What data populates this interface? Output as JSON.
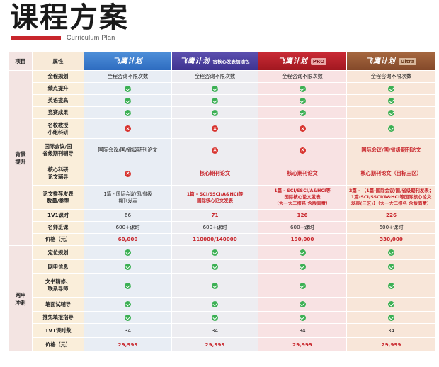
{
  "header": {
    "title": "课程方案",
    "subtitle": "Curriculum Plan",
    "accent_color": "#c8262c"
  },
  "table": {
    "col_group": "项目",
    "col_attr": "属性",
    "plans": [
      {
        "name": "飞鹰计划",
        "tag": "",
        "color": "#3a7bcc"
      },
      {
        "name": "飞鹰计划",
        "tag": "含核心发表加油包",
        "color": "#4a3f9e"
      },
      {
        "name": "飞鹰计划",
        "tag": "PRO",
        "color": "#b51f29"
      },
      {
        "name": "飞鹰计划",
        "tag": "Ultra",
        "color": "#955634"
      }
    ],
    "groups": [
      {
        "label": "背景\n提升",
        "rows": [
          {
            "attr": "全程规划",
            "values": [
              "全程咨询不限次数",
              "全程咨询不限次数",
              "全程咨询不限次数",
              "全程咨询不限次数"
            ]
          },
          {
            "attr": "绩点提升",
            "values": [
              "check",
              "check",
              "check",
              "check"
            ]
          },
          {
            "attr": "英语拔高",
            "values": [
              "check",
              "check",
              "check",
              "check"
            ]
          },
          {
            "attr": "竞赛成果",
            "values": [
              "check",
              "check",
              "check",
              "check"
            ]
          },
          {
            "attr": "名校教授\n小组科研",
            "values": [
              "cross",
              "cross",
              "cross",
              "check"
            ]
          },
          {
            "attr": "国际会议/国\n省级期刊辅导",
            "values": [
              "国际会议/国/省级期刊论文",
              "cross",
              "cross",
              "国际会议/国/省级期刊论文"
            ]
          },
          {
            "attr": "核心科研\n论文辅导",
            "values": [
              "cross",
              "核心期刊论文",
              "核心期刊论文",
              "核心期刊论文（目标三区）"
            ]
          },
          {
            "attr": "论文推荐发表\n数量/类型",
            "values": [
              "1篇 - 国际会议/国/省级\n期刊发表",
              "1篇 - SCI/SSCI/A&HCI等\n国际核心论文发表",
              "1篇 - SCI/SSCI/A&HCI等\n国际核心论文发表\n（大一大二报名 含版面费）",
              "2篇 - 【1篇-国际会议/国/省级期刊发表；\n1篇-SCI/SSCI/A&HCI等国际核心论文\n发表(三区)】（大一大二报名 含版面费）"
            ]
          },
          {
            "attr": "1V1课时",
            "values": [
              "66",
              "71",
              "126",
              "226"
            ]
          },
          {
            "attr": "名师班课",
            "values": [
              "600+课时",
              "600+课时",
              "600+课时",
              "600+课时"
            ]
          },
          {
            "attr": "价格（元）",
            "values": [
              "60,000",
              "110000/140000",
              "190,000",
              "330,000"
            ]
          }
        ]
      },
      {
        "label": "网申\n冲刺",
        "rows": [
          {
            "attr": "定位规划",
            "values": [
              "check",
              "check",
              "check",
              "check"
            ]
          },
          {
            "attr": "网申信息",
            "values": [
              "check",
              "check",
              "check",
              "check"
            ]
          },
          {
            "attr": "文书精修、\n联系导师",
            "values": [
              "check",
              "check",
              "check",
              "check"
            ]
          },
          {
            "attr": "笔面试辅导",
            "values": [
              "check",
              "check",
              "check",
              "check"
            ]
          },
          {
            "attr": "推免填报指导",
            "values": [
              "check",
              "check",
              "check",
              "check"
            ]
          },
          {
            "attr": "1V1课时数",
            "values": [
              "34",
              "34",
              "34",
              "34"
            ]
          },
          {
            "attr": "价格（元）",
            "values": [
              "29,999",
              "29,999",
              "29,999",
              "29,999"
            ]
          }
        ]
      }
    ]
  }
}
